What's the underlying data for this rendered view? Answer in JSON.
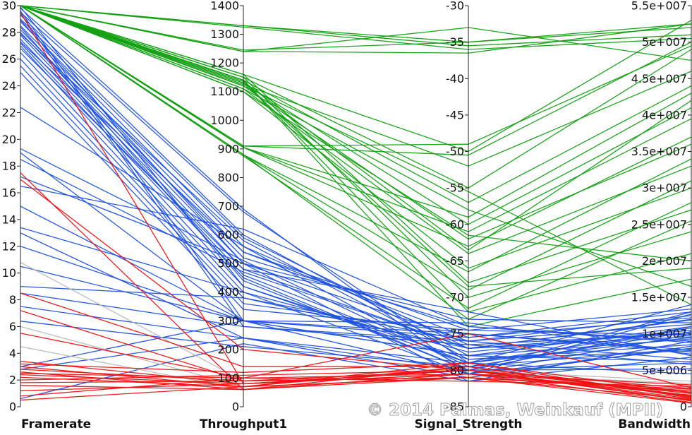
{
  "chart_data": {
    "type": "parallel-coordinates",
    "axes": [
      {
        "name": "Framerate",
        "min": 0,
        "max": 30,
        "ticks": [
          "0",
          "2",
          "4",
          "6",
          "8",
          "10",
          "12",
          "14",
          "16",
          "18",
          "20",
          "22",
          "24",
          "26",
          "28",
          "30"
        ]
      },
      {
        "name": "Throughput1",
        "min": 0,
        "max": 1400,
        "ticks": [
          "0",
          "100",
          "200",
          "300",
          "400",
          "500",
          "600",
          "700",
          "800",
          "900",
          "1000",
          "1100",
          "1200",
          "1300",
          "1400"
        ]
      },
      {
        "name": "Signal_Strength",
        "min": -85,
        "max": -30,
        "ticks": [
          "-85",
          "-80",
          "-75",
          "-70",
          "-65",
          "-60",
          "-55",
          "-50",
          "-45",
          "-40",
          "-35",
          "-30"
        ]
      },
      {
        "name": "Bandwidth",
        "min": 0,
        "max": 55000000,
        "ticks": [
          "0",
          "5e+006",
          "1e+007",
          "1.5e+007",
          "2e+007",
          "2.5e+007",
          "3e+007",
          "3.5e+007",
          "4e+007",
          "4.5e+007",
          "5e+007",
          "5.5e+007"
        ]
      }
    ],
    "series": [
      {
        "name": "green",
        "color": "#11a011",
        "records": [
          [
            30,
            1330,
            -35.0,
            52500000
          ],
          [
            30,
            1330,
            -35.5,
            51000000
          ],
          [
            30,
            1325,
            -36.0,
            50500000
          ],
          [
            30,
            1245,
            -35.0,
            52000000
          ],
          [
            30,
            1240,
            -33.0,
            47500000
          ],
          [
            30,
            1240,
            -36.5,
            52500000
          ],
          [
            30,
            1160,
            -50.0,
            53000000
          ],
          [
            30,
            1150,
            -55.0,
            49000000
          ],
          [
            30,
            1140,
            -57.0,
            44000000
          ],
          [
            30,
            1130,
            -60.0,
            41000000
          ],
          [
            30,
            1120,
            -62.0,
            36000000
          ],
          [
            30,
            1110,
            -64.0,
            33000000
          ],
          [
            30,
            1100,
            -66.0,
            30000000
          ],
          [
            30,
            1160,
            -68.0,
            27000000
          ],
          [
            30,
            1150,
            -70.0,
            24000000
          ],
          [
            30,
            1140,
            -72.0,
            21000000
          ],
          [
            30,
            910,
            -49.0,
            49500000
          ],
          [
            30,
            910,
            -50.5,
            50000000
          ],
          [
            30,
            905,
            -59.0,
            43000000
          ],
          [
            30,
            905,
            -61.0,
            39500000
          ],
          [
            30,
            905,
            -63.0,
            37000000
          ],
          [
            30,
            880,
            -66.5,
            34000000
          ],
          [
            30,
            880,
            -69.0,
            31000000
          ],
          [
            30,
            875,
            -71.5,
            28000000
          ],
          [
            30,
            880,
            -73.0,
            25500000
          ],
          [
            30,
            1100,
            -61.5,
            20000000
          ],
          [
            30,
            1110,
            -58.0,
            16500000
          ],
          [
            30,
            1120,
            -55.5,
            14000000
          ],
          [
            30,
            1130,
            -68.5,
            19000000
          ],
          [
            30,
            1140,
            -74.0,
            17500000
          ],
          [
            30,
            1125,
            -52.0,
            46000000
          ],
          [
            30,
            1135,
            -63.5,
            42000000
          ]
        ]
      },
      {
        "name": "blue",
        "color": "#1f52e0",
        "records": [
          [
            29.8,
            690,
            -80.5,
            8000000
          ],
          [
            29.5,
            680,
            -79.0,
            9500000
          ],
          [
            29.3,
            600,
            -78.0,
            11000000
          ],
          [
            29.0,
            590,
            -77.0,
            12000000
          ],
          [
            28.8,
            560,
            -76.5,
            10000000
          ],
          [
            28.5,
            540,
            -75.5,
            13000000
          ],
          [
            28.2,
            520,
            -74.0,
            9000000
          ],
          [
            28.0,
            500,
            -73.0,
            11500000
          ],
          [
            27.8,
            480,
            -72.0,
            7000000
          ],
          [
            27.5,
            460,
            -79.0,
            14000000
          ],
          [
            27.2,
            450,
            -80.0,
            6000000
          ],
          [
            27.0,
            420,
            -78.5,
            8500000
          ],
          [
            26.5,
            400,
            -77.5,
            10500000
          ],
          [
            26.0,
            380,
            -76.0,
            12500000
          ],
          [
            25.5,
            360,
            -75.0,
            7500000
          ],
          [
            25.0,
            340,
            -74.5,
            9800000
          ],
          [
            22.4,
            560,
            -80.0,
            11000000
          ],
          [
            19.3,
            510,
            -79.5,
            8000000
          ],
          [
            19.0,
            300,
            -78.0,
            9300000
          ],
          [
            18.5,
            470,
            -77.0,
            10200000
          ],
          [
            17.2,
            500,
            -76.0,
            6500000
          ],
          [
            16.5,
            620,
            -74.0,
            8800000
          ],
          [
            15.0,
            300,
            -73.5,
            7200000
          ],
          [
            13.4,
            400,
            -80.5,
            9900000
          ],
          [
            13.0,
            240,
            -79.0,
            10800000
          ],
          [
            12.0,
            300,
            -75.5,
            12200000
          ],
          [
            10.5,
            300,
            -78.0,
            6200000
          ],
          [
            9.0,
            380,
            -77.0,
            11900000
          ],
          [
            8.5,
            280,
            -76.5,
            5800000
          ],
          [
            7.5,
            240,
            -81.0,
            8300000
          ],
          [
            6.4,
            210,
            -79.5,
            10300000
          ],
          [
            3.0,
            300,
            -75.0,
            7800000
          ],
          [
            2.8,
            240,
            -80.0,
            13000000
          ],
          [
            0.6,
            220,
            -81.5,
            9000000
          ],
          [
            29.9,
            420,
            -79.0,
            4500000
          ],
          [
            29.6,
            300,
            -80.5,
            12700000
          ],
          [
            29.4,
            280,
            -76.0,
            11300000
          ],
          [
            28.9,
            500,
            -81.5,
            6800000
          ],
          [
            28.4,
            440,
            -80.0,
            5200000
          ],
          [
            27.9,
            580,
            -78.5,
            7700000
          ],
          [
            27.3,
            540,
            -74.5,
            13400000
          ],
          [
            26.8,
            480,
            -77.0,
            9600000
          ]
        ]
      },
      {
        "name": "red",
        "color": "#ee1111",
        "records": [
          [
            29.5,
            80,
            -80.5,
            2000000
          ],
          [
            17.5,
            60,
            -81.0,
            1000000
          ],
          [
            17.0,
            200,
            -80.0,
            2500000
          ],
          [
            8.5,
            140,
            -79.5,
            1500000
          ],
          [
            7.2,
            90,
            -81.0,
            500000
          ],
          [
            5.5,
            100,
            -80.5,
            3000000
          ],
          [
            3.4,
            80,
            -80.0,
            1800000
          ],
          [
            3.2,
            120,
            -79.0,
            1200000
          ],
          [
            3.0,
            70,
            -81.0,
            2200000
          ],
          [
            2.8,
            90,
            -80.0,
            800000
          ],
          [
            2.6,
            60,
            -79.5,
            1400000
          ],
          [
            2.5,
            100,
            -81.5,
            2800000
          ],
          [
            2.4,
            80,
            -80.5,
            600000
          ],
          [
            2.2,
            70,
            -79.0,
            1900000
          ],
          [
            2.0,
            110,
            -80.0,
            1100000
          ],
          [
            1.8,
            90,
            -81.0,
            2400000
          ],
          [
            1.6,
            60,
            -80.5,
            1600000
          ],
          [
            1.2,
            80,
            -80.0,
            900000
          ],
          [
            0.8,
            100,
            -75.0,
            2600000
          ],
          [
            0.5,
            70,
            -79.5,
            1300000
          ]
        ]
      },
      {
        "name": "gray",
        "color": "#bbbbbb",
        "records": [
          [
            10.8,
            90,
            -80.0,
            3500000
          ],
          [
            6.0,
            70,
            -81.0,
            2700000
          ],
          [
            4.5,
            60,
            -80.5,
            3200000
          ]
        ]
      }
    ]
  },
  "watermark": "© 2014 Palmas, Weinkauf (MPII)"
}
